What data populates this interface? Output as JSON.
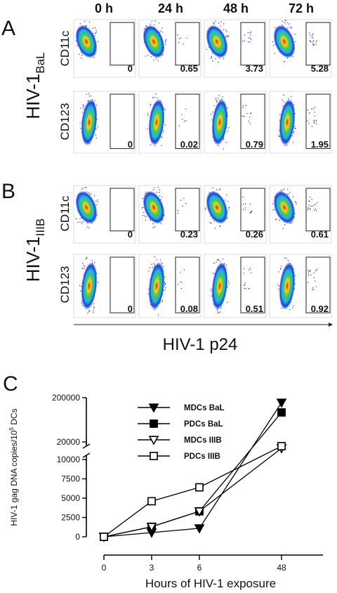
{
  "columns": [
    "0 h",
    "24 h",
    "48 h",
    "72 h"
  ],
  "panel_a": {
    "letter": "A",
    "label": "HIV-1",
    "label_sub": "BaL",
    "rows": [
      {
        "marker": "CD11c",
        "values": [
          0,
          0.65,
          3.73,
          5.28
        ]
      },
      {
        "marker": "CD123",
        "values": [
          0,
          0.02,
          0.79,
          1.95
        ]
      }
    ]
  },
  "panel_b": {
    "letter": "B",
    "label": "HIV-1",
    "label_sub": "IIIB",
    "rows": [
      {
        "marker": "CD11c",
        "values": [
          0,
          0.23,
          0.26,
          0.61
        ]
      },
      {
        "marker": "CD123",
        "values": [
          0,
          0.08,
          0.51,
          0.92
        ]
      }
    ]
  },
  "flow_x_label": "HIV-1 p24",
  "chart_data": {
    "type": "line",
    "letter": "C",
    "x_label": "Hours of HIV-1 exposure",
    "y_label": "HIV-1 gag DNA copies/10",
    "y_label_sup": "5",
    "y_label_end": " DCs",
    "categories": [
      "0",
      "3",
      "6",
      "48"
    ],
    "ylim": [
      0,
      200000
    ],
    "axis_break": [
      10000,
      20000
    ],
    "yticks": [
      0,
      2500,
      5000,
      7500,
      10000,
      20000,
      200000
    ],
    "series": [
      {
        "name": "MDCs BaL",
        "color": "#000000",
        "marker": "triangle-down",
        "filled": true,
        "values": [
          0,
          550,
          1100,
          180000
        ]
      },
      {
        "name": "PDCs BaL",
        "color": "#000000",
        "marker": "square",
        "filled": true,
        "values": [
          0,
          1300,
          3300,
          140000
        ]
      },
      {
        "name": "MDCs IIIB",
        "color": "#000000",
        "marker": "triangle-down",
        "filled": false,
        "values": [
          0,
          1300,
          3300,
          16400
        ]
      },
      {
        "name": "PDCs IIIB",
        "color": "#000000",
        "marker": "square",
        "filled": false,
        "values": [
          0,
          4600,
          6400,
          17600
        ]
      }
    ]
  }
}
